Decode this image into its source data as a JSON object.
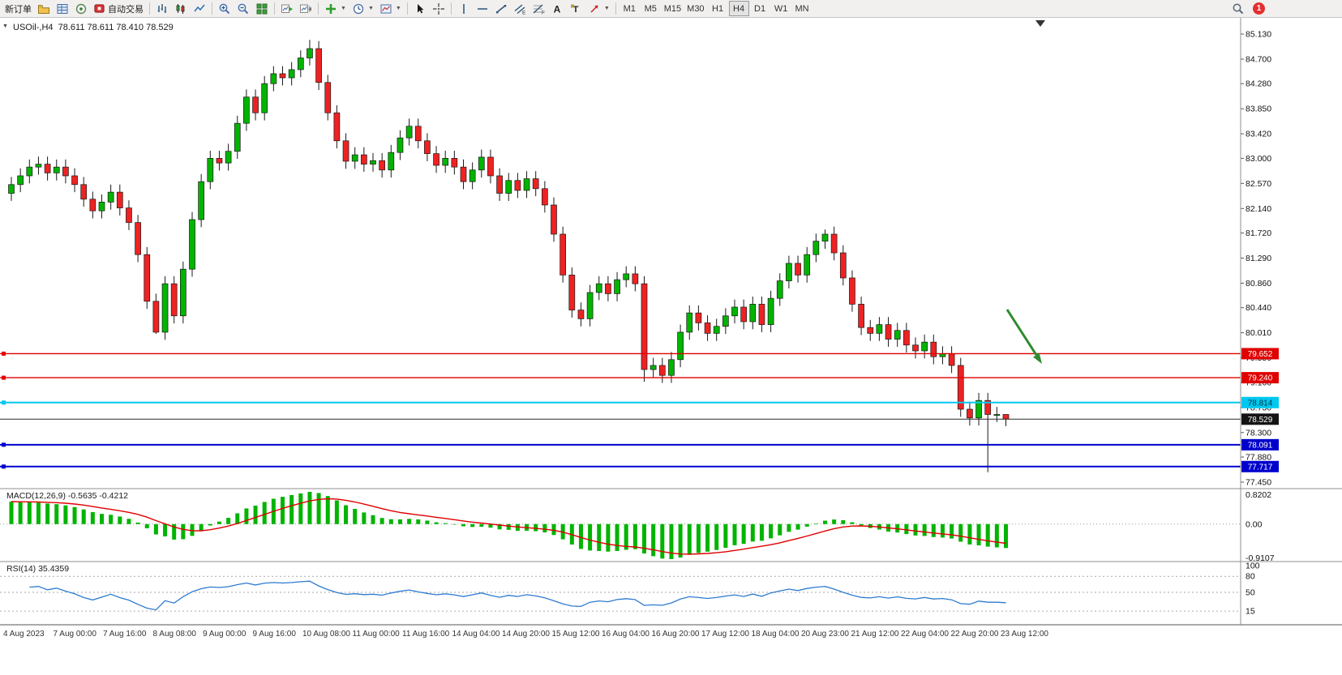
{
  "toolbar": {
    "new_order_label": "新订单",
    "auto_trading_label": "自动交易",
    "timeframes": [
      "M1",
      "M5",
      "M15",
      "M30",
      "H1",
      "H4",
      "D1",
      "W1",
      "MN"
    ],
    "active_timeframe": "H4",
    "text_tool_label": "A",
    "label_tool_label": "T",
    "channel_tool_letter": "E",
    "fibo_tool_letter": "F",
    "notification_count": "1"
  },
  "chart": {
    "header": "USOil-,H4  78.611 78.611 78.410 78.529",
    "symbol": "USOil-",
    "period": "H4",
    "price_top": 85.13,
    "price_bottom": 77.45,
    "price_axis_labels": [
      "85.130",
      "84.700",
      "84.280",
      "83.850",
      "83.420",
      "83.000",
      "82.570",
      "82.140",
      "81.720",
      "81.290",
      "80.860",
      "80.440",
      "80.010",
      "79.580",
      "79.160",
      "78.730",
      "78.300",
      "77.880",
      "77.450"
    ],
    "time_axis_labels": [
      "4 Aug 2023",
      "7 Aug 00:00",
      "7 Aug 16:00",
      "8 Aug 08:00",
      "9 Aug 00:00",
      "9 Aug 16:00",
      "10 Aug 08:00",
      "11 Aug 00:00",
      "11 Aug 16:00",
      "14 Aug 04:00",
      "14 Aug 20:00",
      "15 Aug 12:00",
      "16 Aug 04:00",
      "16 Aug 20:00",
      "17 Aug 12:00",
      "18 Aug 04:00",
      "20 Aug 23:00",
      "21 Aug 12:00",
      "22 Aug 04:00",
      "22 Aug 20:00",
      "23 Aug 12:00"
    ],
    "horizontal_lines": [
      {
        "price": 79.652,
        "label": "79.652",
        "color": "#e00000",
        "text_color": "#ffffff",
        "width": 1.4
      },
      {
        "price": 79.24,
        "label": "79.240",
        "color": "#e00000",
        "text_color": "#ffffff",
        "width": 1.4
      },
      {
        "price": 78.814,
        "label": "78.814",
        "color": "#00c8f0",
        "text_color": "#013540",
        "width": 2
      },
      {
        "price": 78.091,
        "label": "78.091",
        "color": "#0000cd",
        "text_color": "#ffffff",
        "width": 2
      },
      {
        "price": 77.717,
        "label": "77.717",
        "color": "#0000cd",
        "text_color": "#ffffff",
        "width": 2
      }
    ],
    "last_price": {
      "price": 78.529,
      "label": "78.529",
      "color": "#141414",
      "text_color": "#ffffff"
    },
    "annotation_arrow": {
      "color": "#2e8b2e"
    },
    "colors": {
      "bull": "#00b400",
      "bear": "#ee2222",
      "outline": "#1a1a1a",
      "background": "#ffffff"
    }
  },
  "indicators": {
    "macd": {
      "label": "MACD(12,26,9) -0.5635 -0.4212",
      "main_value": -0.5635,
      "signal_value": -0.4212,
      "scale_top": "0.8202",
      "scale_zero": "0.00",
      "scale_bottom": "-0.9107",
      "hist_color": "#00b400",
      "signal_color": "#e00000"
    },
    "rsi": {
      "label": "RSI(14) 35.4359",
      "value": 35.4359,
      "scale_labels": [
        "100",
        "80",
        "50",
        "15"
      ],
      "levels": [
        80,
        50,
        15
      ],
      "line_color": "#2d7bd0"
    }
  },
  "chart_data": {
    "type": "candlestick",
    "symbol": "USOil-",
    "timeframe": "H4",
    "ohlc_last": {
      "open": 78.611,
      "high": 78.611,
      "low": 78.41,
      "close": 78.529
    },
    "first_open": 82.4,
    "default_wick": 0.13,
    "closes": [
      82.55,
      82.7,
      82.85,
      82.9,
      82.75,
      82.85,
      82.7,
      82.55,
      82.3,
      82.1,
      82.25,
      82.42,
      82.15,
      81.9,
      81.35,
      80.55,
      80.02,
      80.85,
      80.3,
      81.1,
      81.95,
      82.6,
      83.0,
      82.92,
      83.12,
      83.6,
      84.05,
      83.78,
      84.28,
      84.45,
      84.38,
      84.52,
      84.72,
      84.88,
      84.3,
      83.78,
      83.3,
      82.95,
      83.06,
      82.9,
      82.96,
      82.8,
      83.1,
      83.35,
      83.55,
      83.3,
      83.08,
      82.88,
      83.0,
      82.85,
      82.6,
      82.8,
      83.02,
      82.7,
      82.4,
      82.62,
      82.45,
      82.65,
      82.48,
      82.2,
      81.7,
      81.0,
      80.4,
      80.25,
      80.7,
      80.85,
      80.68,
      80.92,
      81.02,
      80.85,
      79.38,
      79.45,
      79.28,
      79.55,
      80.02,
      80.35,
      80.18,
      80.0,
      80.12,
      80.3,
      80.45,
      80.2,
      80.5,
      80.15,
      80.6,
      80.9,
      81.2,
      81.0,
      81.35,
      81.58,
      81.7,
      81.38,
      80.95,
      80.5,
      80.1,
      80.0,
      80.15,
      79.9,
      80.05,
      79.8,
      79.7,
      79.85,
      79.6,
      79.65,
      79.45,
      78.7,
      78.55,
      78.85,
      78.61,
      78.61,
      78.53
    ],
    "wick_overrides": {
      "16": {
        "low": 79.99
      },
      "33": {
        "high": 85.03
      },
      "70": {
        "low": 79.17
      },
      "90": {
        "high": 81.78
      },
      "108": {
        "low": 77.62
      },
      "110": {
        "high": 78.611,
        "low": 78.41
      }
    }
  }
}
